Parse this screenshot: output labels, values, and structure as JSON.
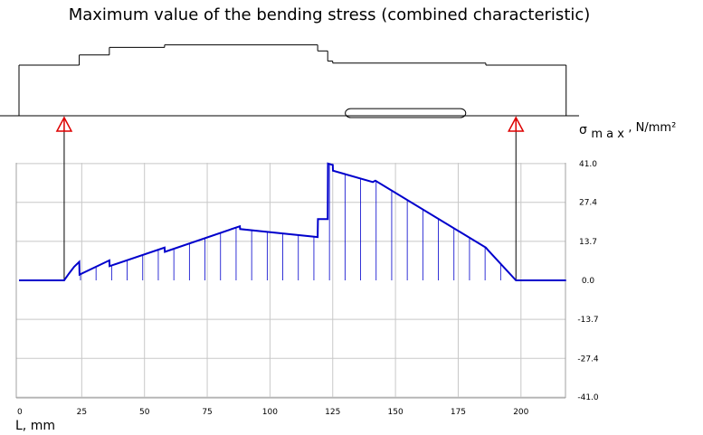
{
  "chart_data": {
    "type": "line",
    "title": "Maximum value of the bending stress (combined characteristic)",
    "xlabel": "L, mm",
    "ylabel": {
      "symbol": "σ",
      "subscript": "m a x",
      "unit": ", N/mm²"
    },
    "xlim": [
      0,
      218
    ],
    "ylim": [
      -41.0,
      41.0
    ],
    "x_ticks": [
      {
        "value": 0,
        "label": "0"
      },
      {
        "value": 25,
        "label": "25"
      },
      {
        "value": 50,
        "label": "50"
      },
      {
        "value": 75,
        "label": "75"
      },
      {
        "value": 100,
        "label": "100"
      },
      {
        "value": 125,
        "label": "125"
      },
      {
        "value": 150,
        "label": "150"
      },
      {
        "value": 175,
        "label": "175"
      },
      {
        "value": 200,
        "label": "200"
      }
    ],
    "y_ticks": [
      {
        "value": 41.0,
        "label": "41.0"
      },
      {
        "value": 27.4,
        "label": "27.4"
      },
      {
        "value": 13.7,
        "label": "13.7"
      },
      {
        "value": 0.0,
        "label": "0.0"
      },
      {
        "value": -13.7,
        "label": "-13.7"
      },
      {
        "value": -27.4,
        "label": "-27.4"
      },
      {
        "value": -41.0,
        "label": "-41.0"
      }
    ],
    "grid": true,
    "line_color": "#0000cc",
    "series": [
      {
        "points": [
          [
            0,
            0
          ],
          [
            18,
            0
          ],
          [
            20,
            2.5
          ],
          [
            22,
            4.8
          ],
          [
            24,
            6.5
          ],
          [
            24.1,
            2.0
          ],
          [
            36,
            7.0
          ],
          [
            36.1,
            5.0
          ],
          [
            58,
            11.5
          ],
          [
            58.1,
            10.0
          ],
          [
            88,
            19.0
          ],
          [
            88.1,
            18.0
          ],
          [
            119,
            15.2
          ],
          [
            119.1,
            21.5
          ],
          [
            123,
            21.5
          ],
          [
            123.1,
            41.0
          ],
          [
            125,
            40.5
          ],
          [
            125.1,
            38.5
          ],
          [
            141,
            34.5
          ],
          [
            142,
            35.0
          ],
          [
            186,
            11.5
          ],
          [
            187,
            10.5
          ],
          [
            198,
            0
          ],
          [
            218,
            0
          ]
        ]
      }
    ],
    "supports_x": [
      18,
      198
    ],
    "shaft_outline": {
      "axis_y": 0,
      "segments": [
        [
          0,
          0,
          0,
          100
        ],
        [
          0,
          100,
          24,
          100
        ],
        [
          24,
          100,
          24,
          120
        ],
        [
          24,
          120,
          36,
          120
        ],
        [
          36,
          120,
          36,
          135
        ],
        [
          36,
          135,
          58,
          135
        ],
        [
          58,
          135,
          58,
          140
        ],
        [
          58,
          140,
          119,
          140
        ],
        [
          119,
          140,
          119,
          128
        ],
        [
          119,
          128,
          123,
          128
        ],
        [
          123,
          128,
          123,
          108
        ],
        [
          123,
          108,
          125,
          108
        ],
        [
          125,
          108,
          125,
          104
        ],
        [
          125,
          104,
          186,
          104
        ],
        [
          186,
          104,
          186,
          100
        ],
        [
          186,
          100,
          218,
          100
        ],
        [
          218,
          100,
          218,
          0
        ]
      ],
      "keyway": [
        130,
        0,
        178,
        14
      ]
    }
  }
}
